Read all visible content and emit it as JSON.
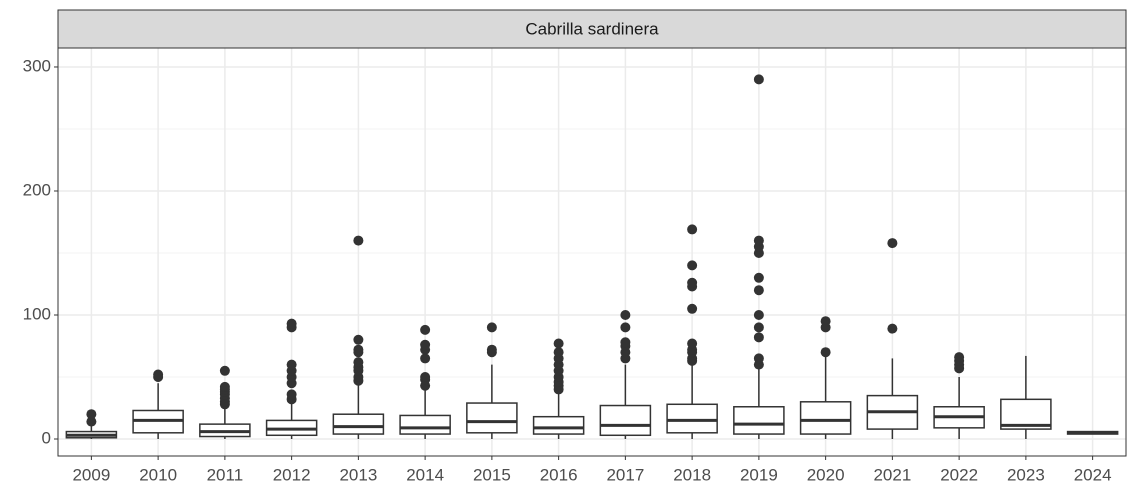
{
  "chart_data": {
    "type": "box",
    "title": "Cabrilla sardinera",
    "categories": [
      "2009",
      "2010",
      "2011",
      "2012",
      "2013",
      "2014",
      "2015",
      "2016",
      "2017",
      "2018",
      "2019",
      "2020",
      "2021",
      "2022",
      "2023",
      "2024"
    ],
    "boxes": [
      {
        "min": 0,
        "q1": 1,
        "median": 3,
        "q3": 6,
        "max": 11,
        "outliers": [
          14,
          20
        ]
      },
      {
        "min": 0,
        "q1": 5,
        "median": 15,
        "q3": 23,
        "max": 45,
        "outliers": [
          50,
          52
        ]
      },
      {
        "min": 0,
        "q1": 2,
        "median": 6,
        "q3": 12,
        "max": 25,
        "outliers": [
          28,
          30,
          33,
          36,
          38,
          40,
          42,
          55
        ]
      },
      {
        "min": 0,
        "q1": 3,
        "median": 8,
        "q3": 15,
        "max": 30,
        "outliers": [
          32,
          36,
          45,
          50,
          55,
          60,
          90,
          93
        ]
      },
      {
        "min": 0,
        "q1": 4,
        "median": 10,
        "q3": 20,
        "max": 45,
        "outliers": [
          47,
          50,
          55,
          58,
          62,
          70,
          72,
          80,
          160
        ]
      },
      {
        "min": 0,
        "q1": 4,
        "median": 9,
        "q3": 19,
        "max": 40,
        "outliers": [
          43,
          48,
          50,
          65,
          72,
          76,
          88
        ]
      },
      {
        "min": 0,
        "q1": 5,
        "median": 14,
        "q3": 29,
        "max": 60,
        "outliers": [
          70,
          72,
          90
        ]
      },
      {
        "min": 0,
        "q1": 4,
        "median": 9,
        "q3": 18,
        "max": 38,
        "outliers": [
          40,
          43,
          46,
          50,
          55,
          60,
          65,
          70,
          77
        ]
      },
      {
        "min": 0,
        "q1": 3,
        "median": 11,
        "q3": 27,
        "max": 60,
        "outliers": [
          65,
          70,
          75,
          78,
          90,
          100
        ]
      },
      {
        "min": 0,
        "q1": 5,
        "median": 15,
        "q3": 28,
        "max": 60,
        "outliers": [
          63,
          65,
          70,
          72,
          77,
          105,
          123,
          126,
          140,
          169
        ]
      },
      {
        "min": 0,
        "q1": 4,
        "median": 12,
        "q3": 26,
        "max": 57,
        "outliers": [
          60,
          65,
          82,
          90,
          100,
          120,
          130,
          150,
          155,
          160,
          290
        ]
      },
      {
        "min": 0,
        "q1": 4,
        "median": 15,
        "q3": 30,
        "max": 68,
        "outliers": [
          70,
          90,
          95
        ]
      },
      {
        "min": 0,
        "q1": 8,
        "median": 22,
        "q3": 35,
        "max": 65,
        "outliers": [
          89,
          158
        ]
      },
      {
        "min": 0,
        "q1": 9,
        "median": 18,
        "q3": 26,
        "max": 50,
        "outliers": [
          57,
          60,
          63,
          66
        ]
      },
      {
        "min": 0,
        "q1": 8,
        "median": 11,
        "q3": 32,
        "max": 67,
        "outliers": []
      },
      {
        "min": 4,
        "q1": 4,
        "median": 5,
        "q3": 6,
        "max": 6,
        "outliers": []
      }
    ],
    "ylim": [
      -13.7,
      315.3
    ],
    "yticks": [
      0,
      100,
      200,
      300
    ],
    "yminor": [
      50,
      150,
      250
    ],
    "grid": true,
    "color": "#333333"
  }
}
